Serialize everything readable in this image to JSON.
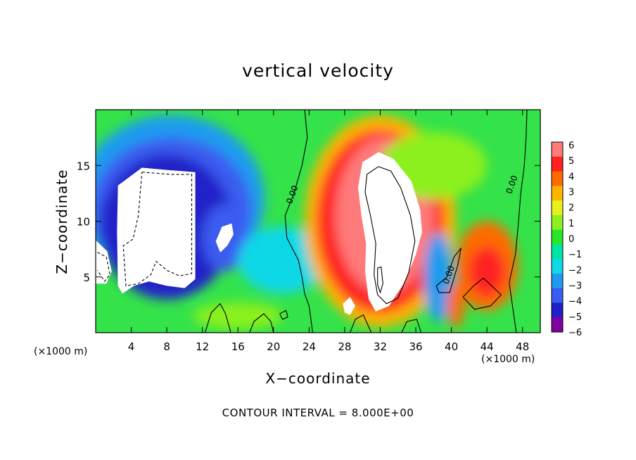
{
  "chart_data": {
    "type": "heatmap",
    "title": "vertical velocity",
    "xlabel": "X−coordinate",
    "ylabel": "Z−coordinate",
    "x_unit_label": "(×1000 m)",
    "z_unit_label": "(×1000 m)",
    "footer": "CONTOUR INTERVAL = 8.000E+00",
    "xlim": [
      0,
      50
    ],
    "ylim": [
      0,
      20
    ],
    "x_ticks": [
      4,
      8,
      12,
      16,
      20,
      24,
      28,
      32,
      36,
      40,
      44,
      48
    ],
    "y_ticks": [
      5,
      10,
      15
    ],
    "colorbar": {
      "min": -6,
      "max": 6,
      "ticks": [
        6,
        5,
        4,
        3,
        2,
        1,
        0,
        -1,
        -2,
        -3,
        -4,
        -5,
        -6
      ],
      "tick_labels": [
        "6",
        "5",
        "4",
        "3",
        "2",
        "1",
        "0",
        "−1",
        "−2",
        "−3",
        "−4",
        "−5",
        "−6"
      ]
    },
    "contour_labels": [
      "0.00",
      "0.00",
      "0.00"
    ],
    "features": [
      {
        "x": 33,
        "z": 9.5,
        "w": 10,
        "note": "updraft core > 6"
      },
      {
        "x": 7.5,
        "z": 9.5,
        "w": -10,
        "note": "downdraft core < -6"
      },
      {
        "x": 44,
        "z": 5.5,
        "w": 4.5
      },
      {
        "x": 28,
        "z": 11,
        "w": 5
      },
      {
        "x": 38.5,
        "z": 5,
        "w": -4
      },
      {
        "x": 14.5,
        "z": 8.5,
        "w": -7
      }
    ]
  }
}
